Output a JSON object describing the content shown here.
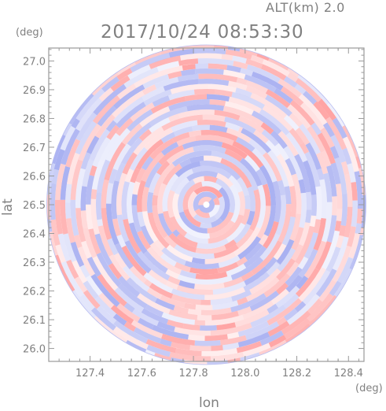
{
  "header": {
    "altitude_label": "ALT(km) 2.0",
    "timestamp": "2017/10/24 08:53:30"
  },
  "chart_data": {
    "type": "heatmap",
    "title": "2017/10/24 08:53:30",
    "annotation": "ALT(km) 2.0",
    "xlabel": "lon",
    "ylabel": "lat",
    "xunit": "(deg)",
    "yunit": "(deg)",
    "xlim": [
      127.24,
      128.46
    ],
    "ylim": [
      25.955,
      27.045
    ],
    "x_ticks": [
      "127.4",
      "127.6",
      "127.8",
      "128.0",
      "128.2",
      "128.4"
    ],
    "y_ticks": [
      "26.0",
      "26.1",
      "26.2",
      "26.3",
      "26.4",
      "26.5",
      "26.6",
      "26.7",
      "26.8",
      "26.9",
      "27.0"
    ],
    "radar_center": {
      "lon": 127.85,
      "lat": 26.5
    },
    "field_shape": "circular radar scan, range about 0.6 deg lon",
    "colormap": {
      "positive": "#ff9a9a",
      "negative": "#a0a8f0",
      "zero": "#ffffff"
    },
    "frame_color": "#9a9a9a"
  }
}
